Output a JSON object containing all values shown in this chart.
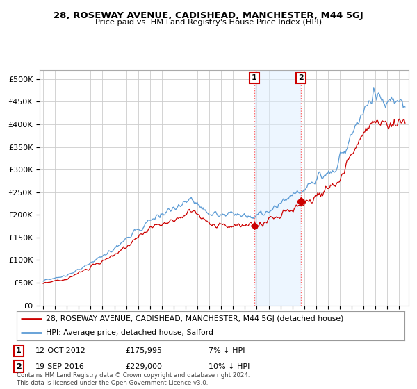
{
  "title": "28, ROSEWAY AVENUE, CADISHEAD, MANCHESTER, M44 5GJ",
  "subtitle": "Price paid vs. HM Land Registry's House Price Index (HPI)",
  "hpi_color": "#5b9bd5",
  "hpi_fill_color": "#ddeeff",
  "price_color": "#cc0000",
  "sale1_date": 2012.79,
  "sale1_price": 175995,
  "sale2_date": 2016.72,
  "sale2_price": 229000,
  "legend_line1": "28, ROSEWAY AVENUE, CADISHEAD, MANCHESTER, M44 5GJ (detached house)",
  "legend_line2": "HPI: Average price, detached house, Salford",
  "footer": "Contains HM Land Registry data © Crown copyright and database right 2024.\nThis data is licensed under the Open Government Licence v3.0.",
  "background_color": "#ffffff",
  "plot_bg_color": "#ffffff",
  "grid_color": "#cccccc",
  "ylim": [
    0,
    520000
  ],
  "xlim_start": 1994.7,
  "xlim_end": 2025.8
}
